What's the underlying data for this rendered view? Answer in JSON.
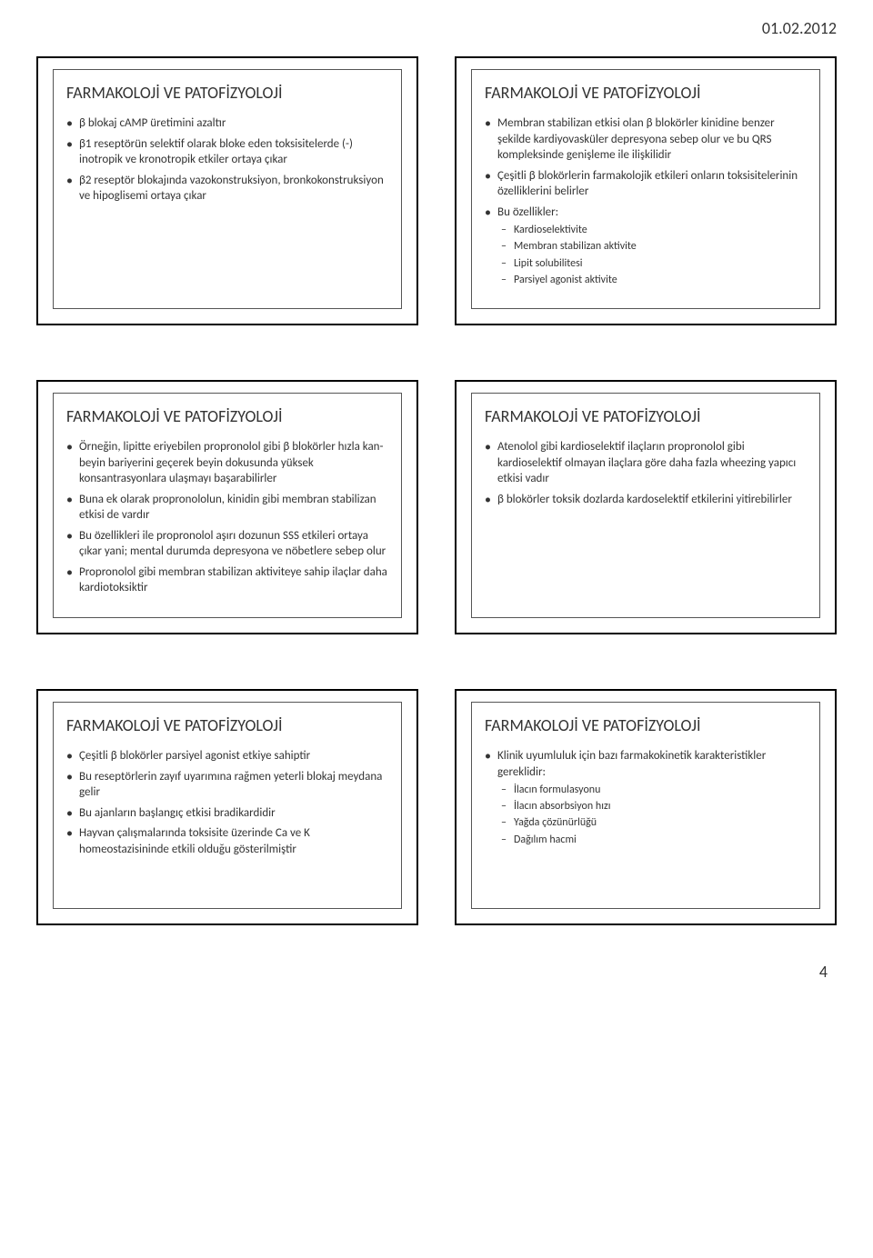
{
  "document": {
    "date": "01.02.2012",
    "page_number": "4",
    "background_color": "#ffffff",
    "text_color": "#333333",
    "border_color": "#000000",
    "title_fontsize": 18,
    "body_fontsize": 13,
    "sub_fontsize": 12
  },
  "slides": [
    {
      "title": "FARMAKOLOJİ VE PATOFİZYOLOJİ",
      "body_class": "",
      "bullets": [
        {
          "text": "β blokaj cAMP üretimini azaltır"
        },
        {
          "text": "β1 reseptörün selektif olarak bloke eden toksisitelerde (-) inotropik ve kronotropik etkiler ortaya çıkar"
        },
        {
          "text": "β2 reseptör blokajında vazokonstruksiyon, bronkokonstruksiyon ve hipoglisemi ortaya çıkar"
        }
      ]
    },
    {
      "title": "FARMAKOLOJİ VE PATOFİZYOLOJİ",
      "body_class": "fs-sm",
      "bullets": [
        {
          "text": "Membran stabilizan etkisi olan β blokörler kinidine benzer şekilde kardiyovasküler depresyona sebep olur ve bu QRS kompleksinde genişleme ile ilişkilidir"
        },
        {
          "text": "Çeşitli β blokörlerin farmakolojik etkileri onların toksisitelerinin özelliklerini belirler"
        },
        {
          "text": "Bu özellikler:",
          "sub": [
            {
              "text": "Kardioselektivite"
            },
            {
              "text": "Membran stabilizan aktivite"
            },
            {
              "text": "Lipit solubilitesi"
            },
            {
              "text": "Parsiyel agonist aktivite"
            }
          ]
        }
      ]
    },
    {
      "title": "FARMAKOLOJİ VE PATOFİZYOLOJİ",
      "body_class": "fs-sm",
      "bullets": [
        {
          "text": "Örneğin, lipitte eriyebilen propronolol gibi β blokörler hızla kan-beyin bariyerini geçerek beyin dokusunda yüksek konsantrasyonlara ulaşmayı başarabilirler"
        },
        {
          "text": "Buna ek olarak propronololun, kinidin gibi membran stabilizan etkisi de vardır"
        },
        {
          "text": "Bu özellikleri ile propronolol aşırı dozunun SSS etkileri ortaya çıkar yani; mental durumda depresyona ve nöbetlere sebep olur"
        },
        {
          "text": "Propronolol gibi membran stabilizan aktiviteye sahip ilaçlar daha kardiotoksiktir"
        }
      ]
    },
    {
      "title": "FARMAKOLOJİ VE PATOFİZYOLOJİ",
      "body_class": "fs-md",
      "bullets": [
        {
          "text": "Atenolol gibi kardioselektif ilaçların propronolol gibi kardioselektif olmayan ilaçlara göre daha fazla wheezing yapıcı etkisi vadır"
        },
        {
          "text": "β blokörler toksik dozlarda kardoselektif etkilerini yitirebilirler"
        }
      ]
    },
    {
      "title": "FARMAKOLOJİ VE PATOFİZYOLOJİ",
      "body_class": "fs-md",
      "bullets": [
        {
          "text": "Çeşitli β blokörler parsiyel agonist etkiye sahiptir"
        },
        {
          "text": "Bu reseptörlerin zayıf uyarımına rağmen yeterli blokaj meydana gelir"
        },
        {
          "text": "Bu ajanların başlangıç etkisi bradikardidir"
        },
        {
          "text": "Hayvan çalışmalarında toksisite üzerinde Ca ve K homeostazisininde etkili olduğu gösterilmiştir"
        }
      ]
    },
    {
      "title": "FARMAKOLOJİ VE PATOFİZYOLOJİ",
      "body_class": "fs-md",
      "bullets": [
        {
          "text": "Klinik uyumluluk için bazı farmakokinetik karakteristikler gereklidir:",
          "sub": [
            {
              "text": "İlacın formulasyonu"
            },
            {
              "text": "İlacın absorbsiyon hızı"
            },
            {
              "text": "Yağda çözünürlüğü"
            },
            {
              "text": "Dağılım hacmi"
            }
          ]
        }
      ]
    }
  ]
}
